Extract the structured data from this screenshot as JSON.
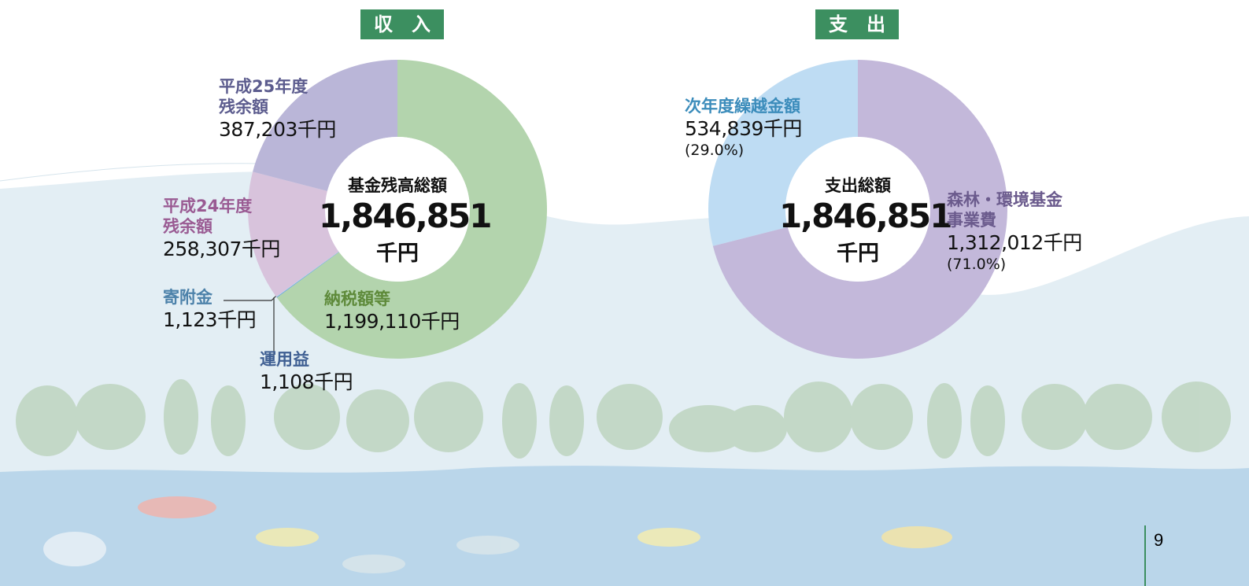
{
  "chart_data": [
    {
      "type": "pie",
      "title": "収　入",
      "center_title": "基金残高総額",
      "total": 1846851,
      "total_label": "1,846,851",
      "total_unit": "千円",
      "categories": [
        "納税額等",
        "運用益",
        "寄附金",
        "平成24年度\n残余額",
        "平成25年度\n残余額"
      ],
      "values": [
        1199110,
        1108,
        1123,
        258307,
        387203
      ],
      "value_labels": [
        "1,199,110千円",
        "1,108千円",
        "1,123千円",
        "258,307千円",
        "387,203千円"
      ],
      "colors": [
        "#b3d4ad",
        "#5b9bd5",
        "#a8d0ec",
        "#d8c3dc",
        "#bab6d8"
      ],
      "label_colors": [
        "#5e8a3a",
        "#3f5f93",
        "#4d82aa",
        "#9a5b93",
        "#5c5c8e"
      ]
    },
    {
      "type": "pie",
      "title": "支　出",
      "center_title": "支出総額",
      "total": 1846851,
      "total_label": "1,846,851",
      "total_unit": "千円",
      "categories": [
        "森林・環境基金\n事業費",
        "次年度繰越金額"
      ],
      "values": [
        1312012,
        534839
      ],
      "value_labels": [
        "1,312,012千円",
        "534,839千円"
      ],
      "percent_labels": [
        "(71.0%)",
        "(29.0%)"
      ],
      "colors": [
        "#c3b8da",
        "#bedcf3"
      ],
      "label_colors": [
        "#6b5b8d",
        "#3b8cbb"
      ]
    }
  ],
  "page_number": "9"
}
